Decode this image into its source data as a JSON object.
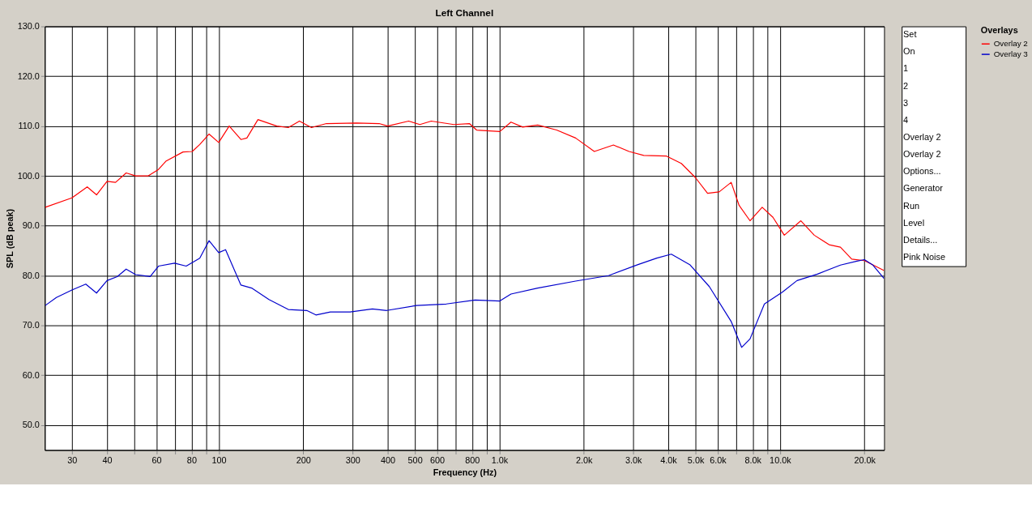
{
  "chart_data": {
    "type": "line",
    "title": "Left Channel",
    "xlabel": "Frequency (Hz)",
    "ylabel": "SPL (dB peak)",
    "log": "x",
    "xlim": [
      24,
      23500
    ],
    "ylim": [
      45,
      130
    ],
    "xticks": [
      30,
      40,
      {
        "value": 50,
        "label": null
      },
      60,
      {
        "value": 70,
        "label": null
      },
      80,
      {
        "value": 90,
        "label": null
      },
      100,
      200,
      300,
      400,
      500,
      600,
      {
        "value": 700,
        "label": null
      },
      800,
      {
        "value": 900,
        "label": null
      },
      {
        "value": 1000,
        "label": "1.0k"
      },
      {
        "value": 2000,
        "label": "2.0k"
      },
      {
        "value": 3000,
        "label": "3.0k"
      },
      {
        "value": 4000,
        "label": "4.0k"
      },
      {
        "value": 5000,
        "label": "5.0k"
      },
      {
        "value": 6000,
        "label": "6.0k"
      },
      {
        "value": 7000,
        "label": null
      },
      {
        "value": 8000,
        "label": "8.0k"
      },
      {
        "value": 9000,
        "label": null
      },
      {
        "value": 10000,
        "label": "10.0k"
      },
      {
        "value": 20000,
        "label": "20.0k"
      }
    ],
    "yticks": [
      {
        "value": 50,
        "label": "50.0"
      },
      {
        "value": 60,
        "label": "60.0"
      },
      {
        "value": 70,
        "label": "70.0"
      },
      {
        "value": 80,
        "label": "80.0"
      },
      {
        "value": 90,
        "label": "90.0"
      },
      {
        "value": 100,
        "label": "100.0"
      },
      {
        "value": 110,
        "label": "110.0"
      },
      {
        "value": 120,
        "label": "120.0"
      },
      {
        "value": 130,
        "label": "130.0"
      }
    ],
    "grid": true,
    "legend": "right",
    "legend_title": "Overlays",
    "series": [
      {
        "name": "Overlay 2",
        "color": "#ff0000",
        "x": [
          24.1,
          30,
          34,
          36.7,
          40,
          42.9,
          46.8,
          50.6,
          56,
          61,
          65,
          74.6,
          80.5,
          85.6,
          92.4,
          100,
          109,
          120,
          126,
          138,
          161,
          177,
          194,
          214,
          242,
          310,
          373,
          400,
          475,
          521,
          572,
          689,
          782,
          830,
          1004,
          1100,
          1211,
          1370,
          1600,
          1870,
          2180,
          2550,
          2900,
          3270,
          3930,
          4450,
          4990,
          5520,
          6070,
          6700,
          7150,
          7820,
          8640,
          9440,
          10360,
          11870,
          13250,
          14960,
          16420,
          18020,
          20000,
          23500
        ],
        "values": [
          93.7,
          95.6,
          97.8,
          96.2,
          98.9,
          98.7,
          100.6,
          100.0,
          100.0,
          101.3,
          103.0,
          104.8,
          104.9,
          106.3,
          108.4,
          106.7,
          110.0,
          107.3,
          107.6,
          111.3,
          110.0,
          109.7,
          111.0,
          109.7,
          110.5,
          110.6,
          110.5,
          110.0,
          111.0,
          110.3,
          111.0,
          110.3,
          110.5,
          109.2,
          108.9,
          110.8,
          109.8,
          110.2,
          109.2,
          107.6,
          104.9,
          106.2,
          104.9,
          104.1,
          104.0,
          102.5,
          99.7,
          96.5,
          96.8,
          98.7,
          94.1,
          91.0,
          93.7,
          91.7,
          88.1,
          91.0,
          88.1,
          86.2,
          85.7,
          83.3,
          83.0,
          81.0
        ]
      },
      {
        "name": "Overlay 3",
        "color": "#0000cc",
        "x": [
          24.1,
          26.4,
          30,
          33.6,
          36.7,
          40,
          43.5,
          46.8,
          50.6,
          57,
          61,
          69.6,
          76.6,
          85.6,
          92.4,
          100,
          105.8,
          120,
          131,
          151,
          177,
          206,
          222,
          250,
          294,
          353,
          397,
          507,
          647,
          820,
          1004,
          1100,
          1370,
          1870,
          2450,
          3120,
          3640,
          4100,
          4770,
          5600,
          6700,
          7300,
          7820,
          8800,
          10210,
          11500,
          13600,
          16420,
          18800,
          20000,
          21440,
          23500
        ],
        "values": [
          74.0,
          75.6,
          77.1,
          78.3,
          76.5,
          79.0,
          79.8,
          81.3,
          80.2,
          79.8,
          81.9,
          82.5,
          81.9,
          83.5,
          87.0,
          84.6,
          85.2,
          78.1,
          77.5,
          75.2,
          73.2,
          73.0,
          72.1,
          72.7,
          72.7,
          73.3,
          73.0,
          74.0,
          74.3,
          75.1,
          74.9,
          76.3,
          77.5,
          78.9,
          80.0,
          82.2,
          83.5,
          84.3,
          82.2,
          77.8,
          70.8,
          65.6,
          67.3,
          74.3,
          76.7,
          79.0,
          80.3,
          82.1,
          82.9,
          83.2,
          82.1,
          79.4
        ]
      }
    ],
    "annotations": [
      "Set",
      "On",
      "1",
      "2",
      "3",
      "4",
      "Overlay 2",
      "Overlay 2",
      "Options...",
      "Generator",
      "Run",
      "Level",
      "Details...",
      "Pink Noise"
    ]
  }
}
